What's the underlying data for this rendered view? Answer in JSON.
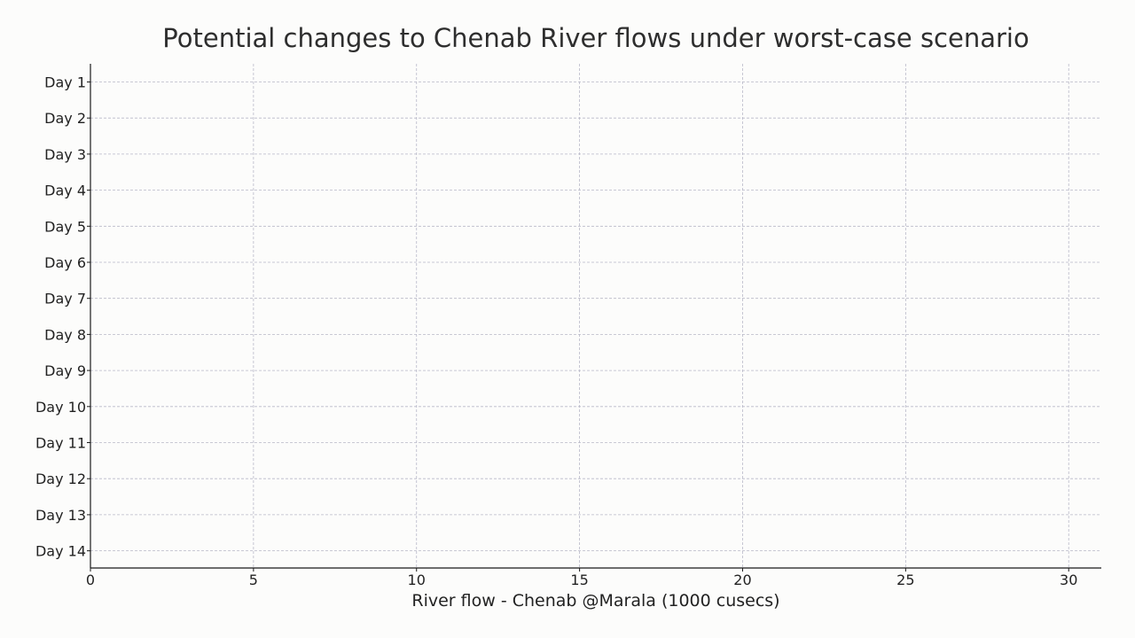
{
  "chart_data": {
    "type": "bar",
    "orientation": "horizontal",
    "title": "Potential changes to Chenab River flows under worst-case scenario",
    "xlabel": "River flow - Chenab @Marala (1000 cusecs)",
    "ylabel": "",
    "categories": [
      "Day 1",
      "Day 2",
      "Day 3",
      "Day 4",
      "Day 5",
      "Day 6",
      "Day 7",
      "Day 8",
      "Day 9",
      "Day 10",
      "Day 11",
      "Day 12",
      "Day 13",
      "Day 14"
    ],
    "x_ticks": [
      0,
      5,
      10,
      15,
      20,
      25,
      30
    ],
    "xlim": [
      0,
      31
    ],
    "series": [],
    "grid": true,
    "legend": "none"
  },
  "colors": {
    "background": "#fcfcfb",
    "grid": "#b8b8c8",
    "axis": "#1a1a1a",
    "text": "#222222"
  }
}
